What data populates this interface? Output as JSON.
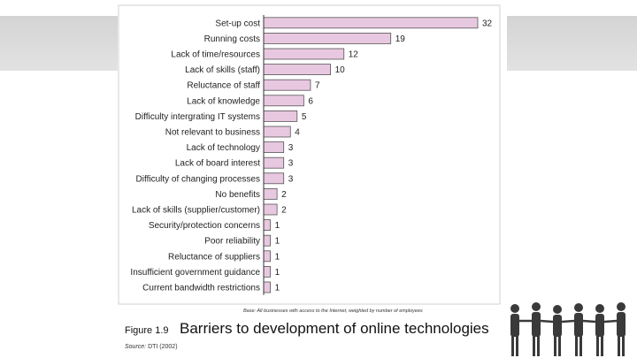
{
  "chart_data": {
    "type": "bar",
    "orientation": "horizontal",
    "categories": [
      "Set-up cost",
      "Running costs",
      "Lack of time/resources",
      "Lack of skills (staff)",
      "Reluctance of staff",
      "Lack of knowledge",
      "Difficulty intergrating IT systems",
      "Not relevant to business",
      "Lack of technology",
      "Lack of board interest",
      "Difficulty of changing processes",
      "No benefits",
      "Lack of skills (supplier/customer)",
      "Security/protection concerns",
      "Poor reliability",
      "Reluctance of suppliers",
      "Insufficient government guidance",
      "Current bandwidth restrictions"
    ],
    "values": [
      32,
      19,
      12,
      10,
      7,
      6,
      5,
      4,
      3,
      3,
      3,
      2,
      2,
      1,
      1,
      1,
      1,
      1
    ],
    "xlim": [
      0,
      32
    ],
    "bar_color": "#e8c8e0",
    "bar_edge_color": "#555555",
    "grid": false,
    "base_note": "Base: All businesses with access to the Internet, weighted by number of employees"
  },
  "caption": {
    "figure_number": "Figure 1.9",
    "title": "Barriers to development of online technologies",
    "source_label": "Source:",
    "source_value": "DTI (2002)"
  },
  "decoration": {
    "image": "people-holding-hands-silhouettes"
  }
}
